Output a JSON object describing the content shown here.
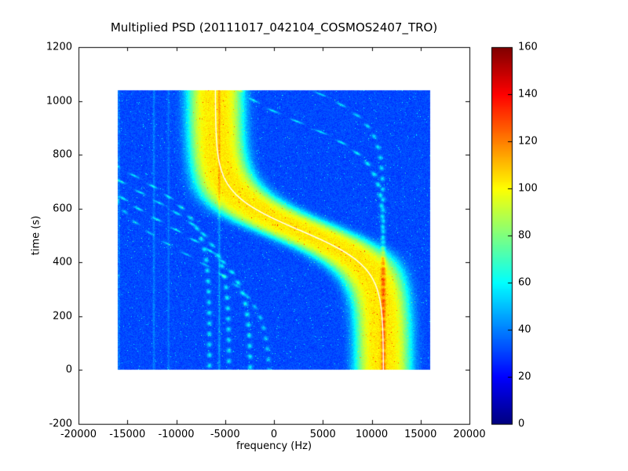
{
  "chart_data": {
    "type": "heatmap",
    "title": "Multiplied PSD (20111017_042104_COSMOS2407_TRO)",
    "xlabel": "frequency (Hz)",
    "ylabel": "time (s)",
    "xlim": [
      -20000,
      20000
    ],
    "ylim": [
      -200,
      1200
    ],
    "xticks": [
      -20000,
      -15000,
      -10000,
      -5000,
      0,
      5000,
      10000,
      15000,
      20000
    ],
    "yticks": [
      -200,
      0,
      200,
      400,
      600,
      800,
      1000,
      1200
    ],
    "grid": false,
    "colormap": "jet",
    "colorbar": {
      "vmin": 0,
      "vmax": 160,
      "ticks": [
        0,
        20,
        40,
        60,
        80,
        100,
        120,
        140,
        160
      ],
      "position": "right"
    },
    "extent": {
      "f_min": -16000,
      "f_max": 16000,
      "t_min": 0,
      "t_max": 1040
    },
    "background_value": 30,
    "noise_amplitude": 9,
    "main_band": {
      "description": "S-shaped satellite Doppler track, bright PSD ridge",
      "center_offset_hz": 2600,
      "amplitude_hz": 8600,
      "t_mid_s": 520,
      "tau_s": 135,
      "sigma_hz": 2900,
      "bend_widen": 0.6,
      "peak_value": 72,
      "fit_line_color": "#ffffff"
    },
    "secondary_bands": [
      {
        "center_offset_hz": -11000,
        "amplitude_hz": 8600,
        "t_mid_s": 540,
        "tau_s": 170,
        "sigma_hz": 230,
        "peak_value": 28
      },
      {
        "center_offset_hz": -13200,
        "amplitude_hz": 8600,
        "t_mid_s": 650,
        "tau_s": 170,
        "sigma_hz": 230,
        "peak_value": 26
      },
      {
        "center_offset_hz": -15200,
        "amplitude_hz": 8600,
        "t_mid_s": 740,
        "tau_s": 170,
        "sigma_hz": 230,
        "peak_value": 26
      },
      {
        "center_offset_hz": -9000,
        "amplitude_hz": 8600,
        "t_mid_s": 430,
        "tau_s": 170,
        "sigma_hz": 220,
        "peak_value": 20
      },
      {
        "center_offset_hz": 2600,
        "amplitude_hz": 8600,
        "t_mid_s": 920,
        "tau_s": 135,
        "sigma_hz": 230,
        "peak_value": 28
      },
      {
        "center_offset_hz": 2600,
        "amplitude_hz": 8600,
        "t_mid_s": 1060,
        "tau_s": 135,
        "sigma_hz": 230,
        "peak_value": 24
      }
    ],
    "vertical_lines": [
      {
        "f_hz": -12300,
        "value": 13,
        "sigma_hz": 110
      },
      {
        "f_hz": -10800,
        "value": 10,
        "sigma_hz": 110
      },
      {
        "f_hz": -5600,
        "value": 16,
        "sigma_hz": 110
      }
    ]
  },
  "layout_colors": {
    "axis": "#000000",
    "text": "#000000",
    "figure_bg": "#ffffff"
  }
}
